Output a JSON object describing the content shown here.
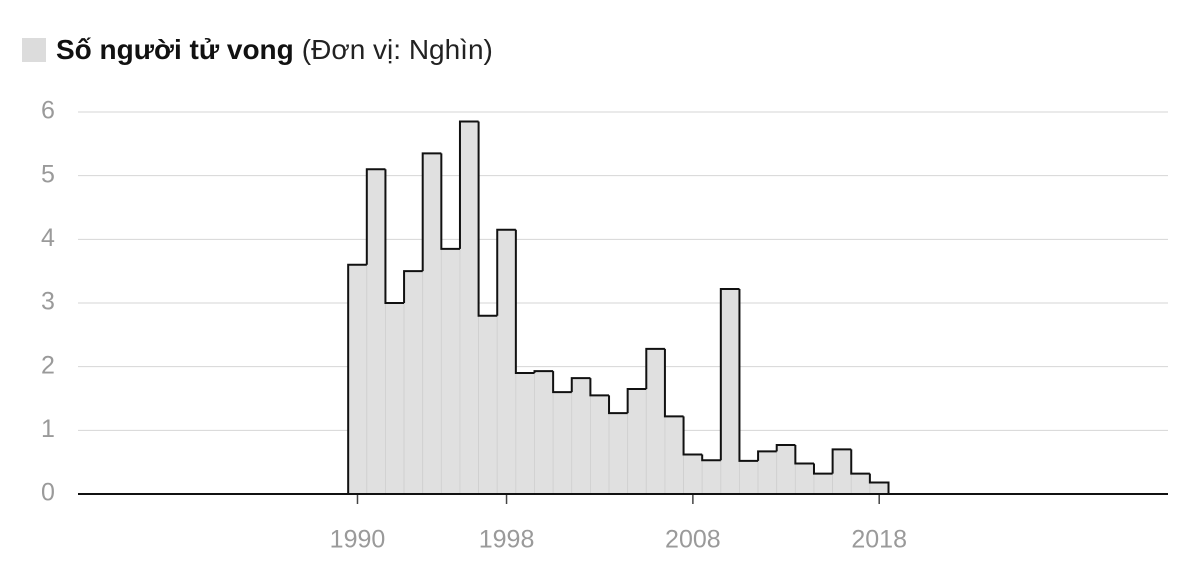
{
  "chart_data": {
    "type": "histogram",
    "title": "Số người tử vong",
    "subtitle": "(Đơn vị: Nghìn)",
    "bins": [
      1989.5,
      1990.5,
      1991.5,
      1992.5,
      1993.5,
      1994.5,
      1995.5,
      1996.5,
      1997.5,
      1998.5,
      1999.5,
      2000.5,
      2001.5,
      2002.5,
      2003.5,
      2004.5,
      2005.5,
      2006.5,
      2007.5,
      2008.5,
      2009.5,
      2010.5,
      2011.5,
      2012.5,
      2013.5,
      2014.5,
      2015.5,
      2016.5,
      2017.5,
      2018.5
    ],
    "values": [
      3.6,
      5.1,
      3.0,
      3.5,
      5.35,
      3.85,
      5.85,
      2.8,
      4.15,
      1.9,
      1.93,
      1.6,
      1.82,
      1.55,
      1.27,
      1.65,
      2.28,
      1.22,
      0.62,
      0.53,
      3.22,
      0.52,
      0.67,
      0.77,
      0.48,
      0.32,
      0.7,
      0.32,
      0.18
    ],
    "color": "#e0e0e0",
    "xlim": [
      1975,
      2033.5
    ],
    "xticks": [
      1990,
      1998,
      2008,
      2018
    ],
    "ylim": [
      0,
      6
    ],
    "yticks": [
      0,
      1,
      2,
      3,
      4,
      5,
      6
    ],
    "grid": true
  }
}
